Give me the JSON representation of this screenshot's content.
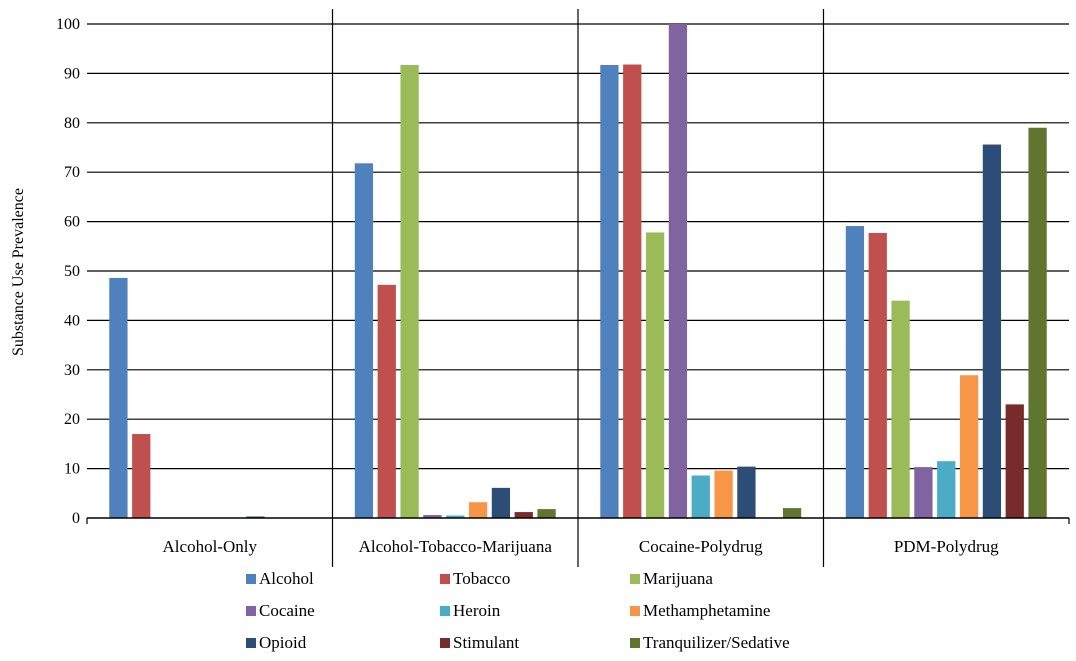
{
  "chart_data": {
    "type": "bar",
    "title": "",
    "xlabel": "",
    "ylabel": "Substance Use Prevalence",
    "ylim": [
      0,
      100
    ],
    "yticks": [
      0,
      10,
      20,
      30,
      40,
      50,
      60,
      70,
      80,
      90,
      100
    ],
    "grid": true,
    "legend_position": "bottom",
    "categories": [
      "Alcohol-Only",
      "Alcohol-Tobacco-Marijuana",
      "Cocaine-Polydrug",
      "PDM-Polydrug"
    ],
    "series": [
      {
        "name": "Alcohol",
        "color": "#4F81BD",
        "values": [
          48.6,
          71.8,
          91.7,
          59.1
        ]
      },
      {
        "name": "Tobacco",
        "color": "#C0504D",
        "values": [
          17.0,
          47.2,
          91.8,
          57.7
        ]
      },
      {
        "name": "Marijuana",
        "color": "#9BBB59",
        "values": [
          0,
          91.7,
          57.8,
          44.0
        ]
      },
      {
        "name": "Cocaine",
        "color": "#8064A2",
        "values": [
          0,
          0.6,
          100,
          10.3
        ]
      },
      {
        "name": "Heroin",
        "color": "#4BACC6",
        "values": [
          0,
          0.5,
          8.6,
          11.5
        ]
      },
      {
        "name": "Methamphetamine",
        "color": "#F79646",
        "values": [
          0,
          3.2,
          9.6,
          28.9
        ]
      },
      {
        "name": "Opioid",
        "color": "#2C4D75",
        "values": [
          0.3,
          6.1,
          10.4,
          75.6
        ]
      },
      {
        "name": "Stimulant",
        "color": "#772C2A",
        "values": [
          0,
          1.2,
          0,
          23.0
        ]
      },
      {
        "name": "Tranquilizer/Sedative",
        "color": "#5F7530",
        "values": [
          0,
          1.8,
          2.0,
          79.0
        ]
      }
    ]
  }
}
